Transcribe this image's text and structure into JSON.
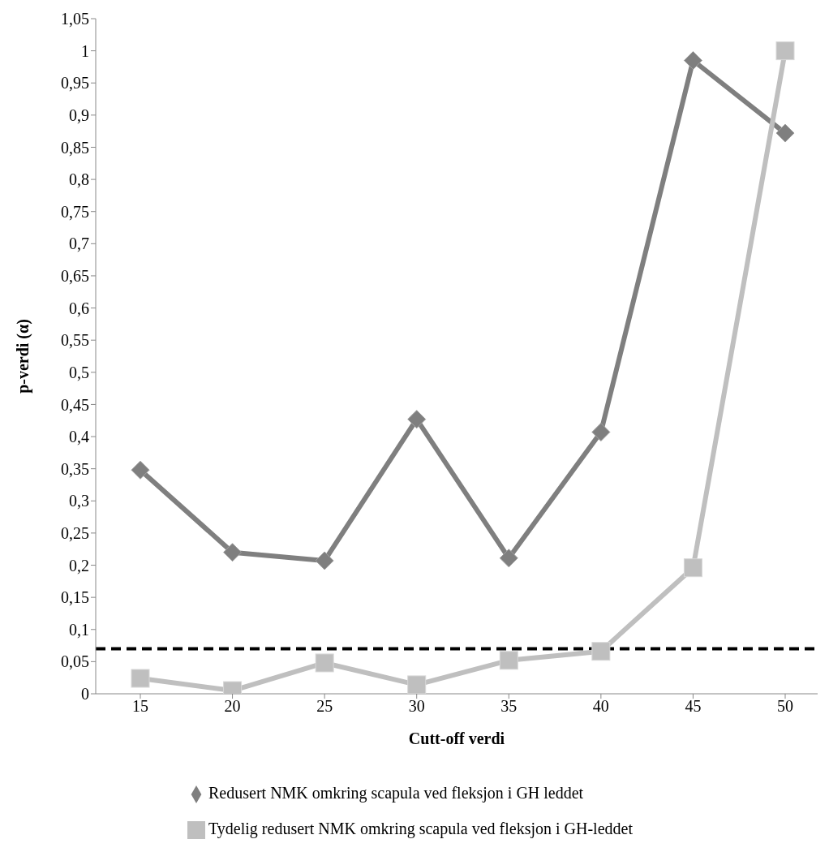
{
  "chart_data": {
    "type": "line",
    "xlabel": "Cutt-off verdi",
    "ylabel": "p-verdi (α)",
    "categories": [
      "15",
      "20",
      "25",
      "30",
      "35",
      "40",
      "45",
      "50"
    ],
    "series": [
      {
        "name": "Redusert NMK omkring scapula ved fleksjon i GH leddet",
        "color": "#7f7f7f",
        "marker": "diamond",
        "values": [
          0.348,
          0.22,
          0.207,
          0.427,
          0.211,
          0.407,
          0.985,
          0.872
        ]
      },
      {
        "name": "Tydelig redusert NMK omkring scapula ved fleksjon i GH-leddet",
        "color": "#bfbfbf",
        "marker": "square",
        "values": [
          0.024,
          0.005,
          0.048,
          0.014,
          0.052,
          0.066,
          0.196,
          1.0
        ]
      }
    ],
    "ylim": [
      0,
      1.05
    ],
    "yticks": [
      0,
      {
        "value": 0.05,
        "label": "0,05"
      },
      {
        "value": 0.1,
        "label": "0,1"
      },
      {
        "value": 0.15,
        "label": "0,15"
      },
      {
        "value": 0.2,
        "label": "0,2"
      },
      {
        "value": 0.25,
        "label": "0,25"
      },
      {
        "value": 0.3,
        "label": "0,3"
      },
      {
        "value": 0.35,
        "label": "0,35"
      },
      {
        "value": 0.4,
        "label": "0,4"
      },
      {
        "value": 0.45,
        "label": "0,45"
      },
      {
        "value": 0.5,
        "label": "0,5"
      },
      {
        "value": 0.55,
        "label": "0,55"
      },
      {
        "value": 0.6,
        "label": "0,6"
      },
      {
        "value": 0.65,
        "label": "0,65"
      },
      {
        "value": 0.7,
        "label": "0,7"
      },
      {
        "value": 0.75,
        "label": "0,75"
      },
      {
        "value": 0.8,
        "label": "0,8"
      },
      {
        "value": 0.85,
        "label": "0,85"
      },
      {
        "value": 0.9,
        "label": "0,9"
      },
      {
        "value": 0.95,
        "label": "0,95"
      },
      1,
      {
        "value": 1.05,
        "label": "1,05"
      }
    ],
    "ref_lines": [
      {
        "axis": "y",
        "value": 0.07,
        "color": "#000000",
        "line_style": "dashed"
      }
    ],
    "grid": false,
    "legend": "bottom",
    "line_style": "solid"
  }
}
